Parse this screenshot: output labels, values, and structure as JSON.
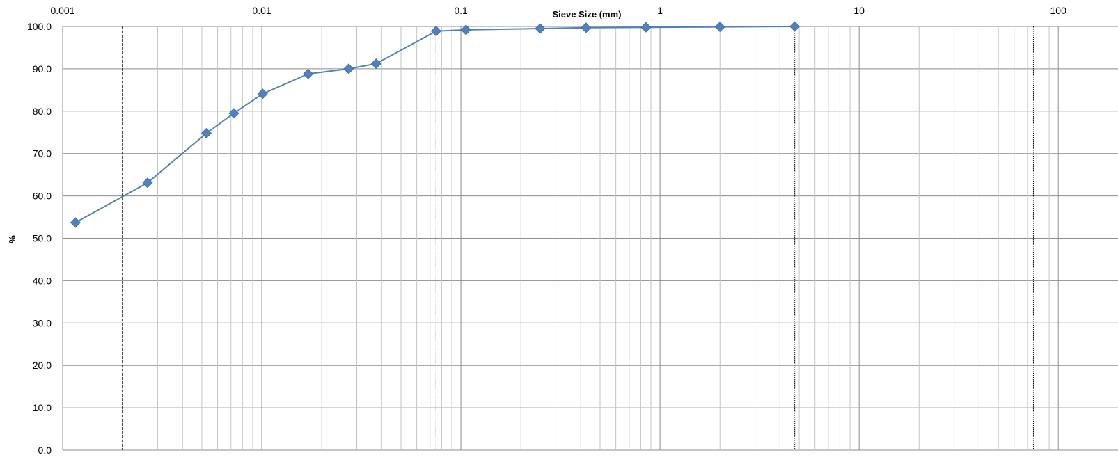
{
  "chart_data": {
    "type": "scatter",
    "title": "",
    "xlabel": "Sieve Size (mm)",
    "ylabel": "%",
    "x_scale": "log",
    "xlim": [
      0.001,
      100
    ],
    "ylim": [
      0,
      100
    ],
    "x_ticks": [
      {
        "value": 0.001,
        "label": "0.001"
      },
      {
        "value": 0.01,
        "label": "0.01"
      },
      {
        "value": 0.1,
        "label": "0.1"
      },
      {
        "value": 1,
        "label": "1"
      },
      {
        "value": 10,
        "label": "10"
      },
      {
        "value": 100,
        "label": "100"
      }
    ],
    "y_ticks": [
      {
        "value": 0,
        "label": "0.0"
      },
      {
        "value": 10,
        "label": "10.0"
      },
      {
        "value": 20,
        "label": "20.0"
      },
      {
        "value": 30,
        "label": "30.0"
      },
      {
        "value": 40,
        "label": "40.0"
      },
      {
        "value": 50,
        "label": "50.0"
      },
      {
        "value": 60,
        "label": "60.0"
      },
      {
        "value": 70,
        "label": "70.0"
      },
      {
        "value": 80,
        "label": "80.0"
      },
      {
        "value": 90,
        "label": "90.0"
      },
      {
        "value": 100,
        "label": "100.0"
      }
    ],
    "grid": true,
    "x_axis_position": "top",
    "reference_lines": [
      {
        "x": 0.002,
        "style": "dashed"
      },
      {
        "x": 0.075,
        "style": "dotted"
      },
      {
        "x": 4.75,
        "style": "dotted"
      },
      {
        "x": 75,
        "style": "dotted"
      }
    ],
    "series": [
      {
        "marker": "diamond",
        "color": "#4f81bd",
        "points": [
          {
            "x": 0.00116,
            "y": 53.7
          },
          {
            "x": 0.00267,
            "y": 63.1
          },
          {
            "x": 0.00527,
            "y": 74.8
          },
          {
            "x": 0.00724,
            "y": 79.5
          },
          {
            "x": 0.0101,
            "y": 84.1
          },
          {
            "x": 0.0171,
            "y": 88.8
          },
          {
            "x": 0.0273,
            "y": 90.0
          },
          {
            "x": 0.0375,
            "y": 91.2
          },
          {
            "x": 0.075,
            "y": 98.9
          },
          {
            "x": 0.106,
            "y": 99.2
          },
          {
            "x": 0.25,
            "y": 99.5
          },
          {
            "x": 0.425,
            "y": 99.7
          },
          {
            "x": 0.85,
            "y": 99.8
          },
          {
            "x": 2.0,
            "y": 99.9
          },
          {
            "x": 4.75,
            "y": 100.0
          }
        ]
      }
    ]
  }
}
